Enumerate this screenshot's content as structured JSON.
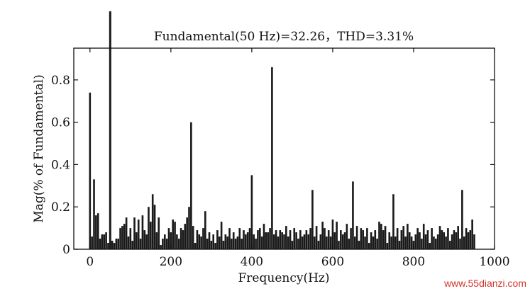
{
  "chart_data": {
    "type": "bar",
    "title": "Fundamental(50 Hz)=32.26，THD=3.31%",
    "xlabel": "Frequency(Hz)",
    "ylabel": "Mag(% of Fundamental)",
    "xlim": [
      -40,
      1000
    ],
    "ylim": [
      0,
      0.95
    ],
    "x_ticks": [
      0,
      200,
      400,
      600,
      800,
      1000
    ],
    "x_tick_labels": [
      "0",
      "200",
      "400",
      "600",
      "800",
      "1000"
    ],
    "y_ticks": [
      0,
      0.2,
      0.4,
      0.6,
      0.8
    ],
    "y_tick_labels": [
      "0",
      "0.2",
      "0.4",
      "0.6",
      "0.8"
    ],
    "grid": false,
    "bar_color": "#1a1a1a",
    "fundamental": {
      "x": 50,
      "value": 100
    },
    "bins_start": 0,
    "bins_step": 5,
    "values": [
      0.74,
      0.06,
      0.33,
      0.16,
      0.17,
      0.05,
      0.07,
      0.07,
      0.08,
      0.03,
      0.0,
      0.04,
      0.03,
      0.05,
      0.05,
      0.1,
      0.11,
      0.12,
      0.15,
      0.06,
      0.1,
      0.04,
      0.15,
      0.08,
      0.14,
      0.05,
      0.16,
      0.09,
      0.07,
      0.2,
      0.13,
      0.26,
      0.21,
      0.08,
      0.15,
      0.02,
      0.05,
      0.07,
      0.05,
      0.1,
      0.08,
      0.14,
      0.13,
      0.07,
      0.05,
      0.1,
      0.09,
      0.12,
      0.15,
      0.2,
      0.6,
      0.11,
      0.03,
      0.09,
      0.07,
      0.06,
      0.1,
      0.18,
      0.05,
      0.08,
      0.04,
      0.07,
      0.03,
      0.09,
      0.06,
      0.13,
      0.04,
      0.07,
      0.06,
      0.1,
      0.05,
      0.08,
      0.05,
      0.06,
      0.1,
      0.05,
      0.09,
      0.07,
      0.08,
      0.1,
      0.35,
      0.07,
      0.05,
      0.09,
      0.1,
      0.06,
      0.12,
      0.08,
      0.08,
      0.1,
      0.86,
      0.07,
      0.09,
      0.06,
      0.09,
      0.08,
      0.07,
      0.11,
      0.06,
      0.09,
      0.04,
      0.1,
      0.08,
      0.05,
      0.09,
      0.06,
      0.07,
      0.09,
      0.07,
      0.1,
      0.28,
      0.06,
      0.11,
      0.04,
      0.07,
      0.13,
      0.1,
      0.06,
      0.09,
      0.06,
      0.14,
      0.08,
      0.13,
      0.04,
      0.09,
      0.07,
      0.08,
      0.12,
      0.05,
      0.1,
      0.32,
      0.06,
      0.11,
      0.04,
      0.1,
      0.09,
      0.06,
      0.1,
      0.03,
      0.08,
      0.06,
      0.09,
      0.05,
      0.13,
      0.12,
      0.09,
      0.11,
      0.03,
      0.08,
      0.06,
      0.26,
      0.06,
      0.1,
      0.04,
      0.09,
      0.11,
      0.06,
      0.12,
      0.08,
      0.06,
      0.04,
      0.07,
      0.1,
      0.08,
      0.05,
      0.12,
      0.07,
      0.09,
      0.03,
      0.1,
      0.06,
      0.05,
      0.07,
      0.11,
      0.09,
      0.08,
      0.06,
      0.1,
      0.04,
      0.07,
      0.09,
      0.08,
      0.11,
      0.05,
      0.28,
      0.06,
      0.1,
      0.08,
      0.09,
      0.14,
      0.07
    ]
  },
  "watermark": {
    "text": "www.55dianzi.com",
    "color": "#d3322a"
  }
}
